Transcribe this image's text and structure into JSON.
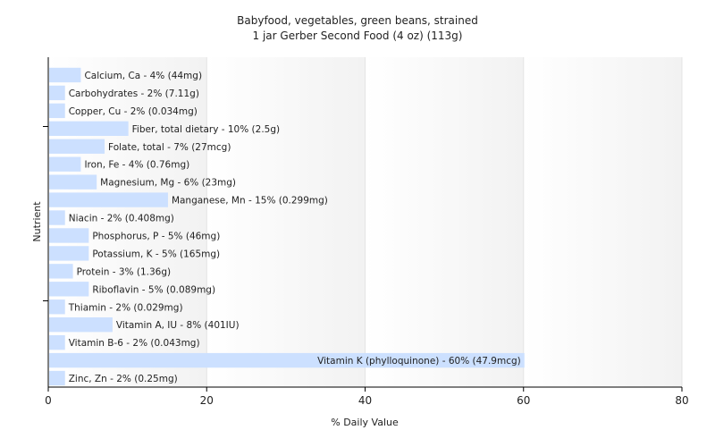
{
  "chart_data": {
    "type": "bar",
    "orientation": "horizontal",
    "title": "Babyfood, vegetables, green beans, strained",
    "subtitle": "1 jar Gerber Second Food (4 oz) (113g)",
    "xlabel": "% Daily Value",
    "ylabel": "Nutrient",
    "xlim": [
      0,
      80
    ],
    "xticks": [
      0,
      20,
      40,
      60,
      80
    ],
    "grid": true,
    "bar_color": "#cce0ff",
    "categories": [
      "Calcium, Ca",
      "Carbohydrates",
      "Copper, Cu",
      "Fiber, total dietary",
      "Folate, total",
      "Iron, Fe",
      "Magnesium, Mg",
      "Manganese, Mn",
      "Niacin",
      "Phosphorus, P",
      "Potassium, K",
      "Protein",
      "Riboflavin",
      "Thiamin",
      "Vitamin A, IU",
      "Vitamin B-6",
      "Vitamin K (phylloquinone)",
      "Zinc, Zn"
    ],
    "values": [
      4,
      2,
      2,
      10,
      7,
      4,
      6,
      15,
      2,
      5,
      5,
      3,
      5,
      2,
      8,
      2,
      60,
      2
    ],
    "labels": [
      "Calcium, Ca - 4% (44mg)",
      "Carbohydrates - 2% (7.11g)",
      "Copper, Cu - 2% (0.034mg)",
      "Fiber, total dietary - 10% (2.5g)",
      "Folate, total - 7% (27mcg)",
      "Iron, Fe - 4% (0.76mg)",
      "Magnesium, Mg - 6% (23mg)",
      "Manganese, Mn - 15% (0.299mg)",
      "Niacin - 2% (0.408mg)",
      "Phosphorus, P - 5% (46mg)",
      "Potassium, K - 5% (165mg)",
      "Protein - 3% (1.36g)",
      "Riboflavin - 5% (0.089mg)",
      "Thiamin - 2% (0.029mg)",
      "Vitamin A, IU - 8% (401IU)",
      "Vitamin B-6 - 2% (0.043mg)",
      "Vitamin K (phylloquinone) - 60% (47.9mcg)",
      "Zinc, Zn - 2% (0.25mg)"
    ]
  }
}
